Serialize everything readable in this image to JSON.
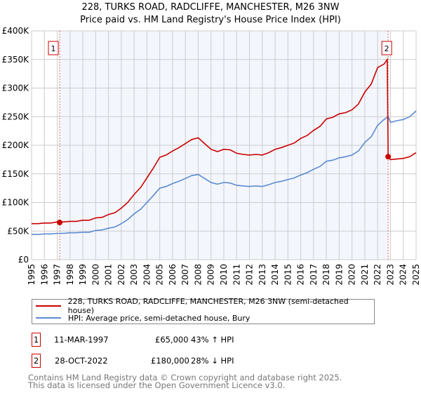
{
  "title_line1": "228, TURKS ROAD, RADCLIFFE, MANCHESTER, M26 3NW",
  "title_line2": "Price paid vs. HM Land Registry's House Price Index (HPI)",
  "chart_data": {
    "type": "line",
    "title": "228, TURKS ROAD, RADCLIFFE, MANCHESTER, M26 3NW — Price paid vs. HM Land Registry's House Price Index (HPI)",
    "xlim": [
      1995,
      2025
    ],
    "ylim": [
      0,
      400000
    ],
    "y_ticks": [
      0,
      50000,
      100000,
      150000,
      200000,
      250000,
      300000,
      350000,
      400000
    ],
    "y_tick_labels": [
      "£0",
      "£50K",
      "£100K",
      "£150K",
      "£200K",
      "£250K",
      "£300K",
      "£350K",
      "£400K"
    ],
    "x_ticks": [
      "1995",
      "1996",
      "1997",
      "1998",
      "1999",
      "2000",
      "2001",
      "2002",
      "2003",
      "2004",
      "2005",
      "2006",
      "2007",
      "2008",
      "2009",
      "2010",
      "2011",
      "2012",
      "2013",
      "2014",
      "2015",
      "2016",
      "2017",
      "2018",
      "2019",
      "2020",
      "2021",
      "2022",
      "2023",
      "2024",
      "2025"
    ],
    "grid": true,
    "shaded_range": [
      1997.19,
      2022.82
    ],
    "series": [
      {
        "name": "228, TURKS ROAD, RADCLIFFE, MANCHESTER, M26 3NW (semi-detached house)",
        "color": "#cc0000",
        "x": [
          1995,
          1995.5,
          1996,
          1996.5,
          1997,
          1997.5,
          1998,
          1998.5,
          1999,
          1999.5,
          2000,
          2000.5,
          2001,
          2001.5,
          2002,
          2002.5,
          2003,
          2003.5,
          2004,
          2004.5,
          2005,
          2005.5,
          2006,
          2006.5,
          2007,
          2007.5,
          2008,
          2008.5,
          2009,
          2009.5,
          2010,
          2010.5,
          2011,
          2011.5,
          2012,
          2012.5,
          2013,
          2013.5,
          2014,
          2014.5,
          2015,
          2015.5,
          2016,
          2016.5,
          2017,
          2017.5,
          2018,
          2018.5,
          2019,
          2019.5,
          2020,
          2020.5,
          2021,
          2021.5,
          2022,
          2022.5,
          2022.75,
          2022.82,
          2023,
          2023.5,
          2024,
          2024.5,
          2025
        ],
        "y": [
          63000,
          63000,
          64000,
          64000,
          66000,
          66000,
          67000,
          67000,
          69000,
          69000,
          73000,
          74000,
          79000,
          82000,
          90000,
          100000,
          114000,
          126000,
          143000,
          160000,
          179000,
          183000,
          190000,
          196000,
          203000,
          210000,
          213000,
          203000,
          193000,
          189000,
          193000,
          192000,
          186000,
          184000,
          183000,
          184000,
          183000,
          187000,
          193000,
          196000,
          200000,
          204000,
          212000,
          217000,
          226000,
          233000,
          246000,
          249000,
          255000,
          257000,
          262000,
          272000,
          293000,
          307000,
          336000,
          342000,
          350000,
          180000,
          175000,
          176000,
          177000,
          180000,
          187000
        ]
      },
      {
        "name": "HPI: Average price, semi-detached house, Bury",
        "color": "#5b8bd0",
        "x": [
          1995,
          1995.5,
          1996,
          1996.5,
          1997,
          1997.5,
          1998,
          1998.5,
          1999,
          1999.5,
          2000,
          2000.5,
          2001,
          2001.5,
          2002,
          2002.5,
          2003,
          2003.5,
          2004,
          2004.5,
          2005,
          2005.5,
          2006,
          2006.5,
          2007,
          2007.5,
          2008,
          2008.5,
          2009,
          2009.5,
          2010,
          2010.5,
          2011,
          2011.5,
          2012,
          2012.5,
          2013,
          2013.5,
          2014,
          2014.5,
          2015,
          2015.5,
          2016,
          2016.5,
          2017,
          2017.5,
          2018,
          2018.5,
          2019,
          2019.5,
          2020,
          2020.5,
          2021,
          2021.5,
          2022,
          2022.5,
          2022.82,
          2023,
          2023.5,
          2024,
          2024.5,
          2025
        ],
        "y": [
          44000,
          44000,
          45000,
          45000,
          46000,
          46000,
          47000,
          47000,
          48000,
          48000,
          51000,
          52000,
          55000,
          57000,
          63000,
          70000,
          80000,
          88000,
          100000,
          112000,
          125000,
          128000,
          133000,
          137000,
          142000,
          147000,
          149000,
          142000,
          135000,
          132000,
          135000,
          134000,
          130000,
          129000,
          128000,
          129000,
          128000,
          131000,
          135000,
          137000,
          140000,
          143000,
          148000,
          152000,
          158000,
          163000,
          172000,
          174000,
          178000,
          180000,
          183000,
          190000,
          205000,
          215000,
          235000,
          245000,
          250000,
          240000,
          243000,
          245000,
          250000,
          260000
        ]
      }
    ],
    "sales": [
      {
        "label": "1",
        "x": 1997.19,
        "y": 65000
      },
      {
        "label": "2",
        "x": 2022.82,
        "y": 180000
      }
    ]
  },
  "legend": [
    {
      "label": "228, TURKS ROAD, RADCLIFFE, MANCHESTER, M26 3NW (semi-detached house)",
      "color": "#cc0000"
    },
    {
      "label": "HPI: Average price, semi-detached house, Bury",
      "color": "#5b8bd0"
    }
  ],
  "transactions": [
    {
      "num": "1",
      "date": "11-MAR-1997",
      "price": "£65,000",
      "hpi": "43% ↑ HPI"
    },
    {
      "num": "2",
      "date": "28-OCT-2022",
      "price": "£180,000",
      "hpi": "28% ↓ HPI"
    }
  ],
  "footer_line1": "Contains HM Land Registry data © Crown copyright and database right 2025.",
  "footer_line2": "This data is licensed under the Open Government Licence v3.0."
}
